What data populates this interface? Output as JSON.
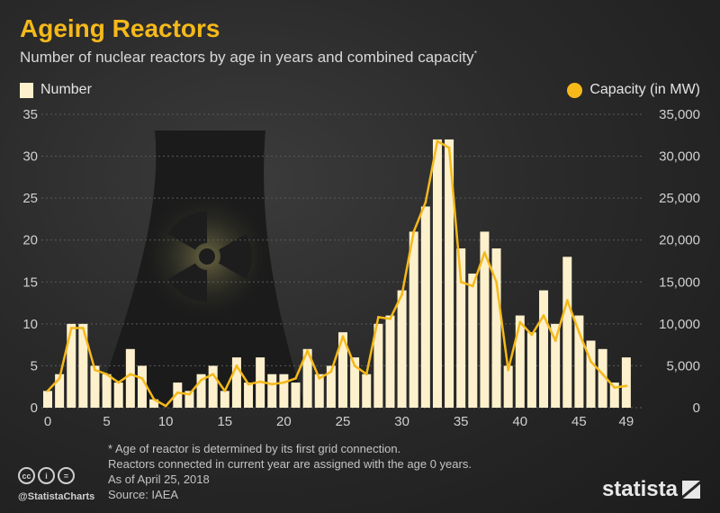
{
  "title": "Ageing Reactors",
  "subtitle": "Number of nuclear reactors by age in years and combined capacity",
  "subtitle_marker": "*",
  "legend": {
    "number": "Number",
    "capacity": "Capacity (in MW)"
  },
  "colors": {
    "bar": "#fdf0cc",
    "line": "#f5b91a",
    "accent": "#f5b91a",
    "text": "#d8d8d8"
  },
  "chart_data": {
    "type": "bar",
    "title": "Ageing Reactors",
    "xlabel": "",
    "ylabel": "Number",
    "y2label": "Capacity (in MW)",
    "ylim": [
      0,
      35
    ],
    "y2lim": [
      0,
      35000
    ],
    "y_ticks": [
      "0",
      "5",
      "10",
      "15",
      "20",
      "25",
      "30",
      "35"
    ],
    "y2_ticks": [
      "0",
      "5,000",
      "10,000",
      "15,000",
      "20,000",
      "25,000",
      "30,000",
      "35,000"
    ],
    "x_ticks": [
      "0",
      "5",
      "10",
      "15",
      "20",
      "25",
      "30",
      "35",
      "40",
      "45",
      "49"
    ],
    "x_tick_positions": [
      0,
      5,
      10,
      15,
      20,
      25,
      30,
      35,
      40,
      45,
      49
    ],
    "categories": [
      0,
      1,
      2,
      3,
      4,
      5,
      6,
      7,
      8,
      9,
      10,
      11,
      12,
      13,
      14,
      15,
      16,
      17,
      18,
      19,
      20,
      21,
      22,
      23,
      24,
      25,
      26,
      27,
      28,
      29,
      30,
      31,
      32,
      33,
      34,
      35,
      36,
      37,
      38,
      39,
      40,
      41,
      42,
      43,
      44,
      45,
      46,
      47,
      48,
      49
    ],
    "series": [
      {
        "name": "Number",
        "type": "bar",
        "values": [
          2,
          4,
          10,
          10,
          5,
          4,
          3,
          7,
          5,
          1,
          0,
          3,
          2,
          4,
          5,
          2,
          6,
          3,
          6,
          4,
          4,
          3,
          7,
          4,
          5,
          9,
          6,
          4,
          10,
          11,
          14,
          21,
          24,
          32,
          32,
          19,
          16,
          21,
          19,
          5,
          11,
          9,
          14,
          10,
          18,
          11,
          8,
          7,
          3,
          6
        ]
      },
      {
        "name": "Capacity (in MW)",
        "type": "line",
        "axis": "right",
        "values": [
          2000,
          3500,
          9500,
          9500,
          4500,
          4000,
          3000,
          4000,
          3500,
          1000,
          200,
          1800,
          1600,
          3300,
          4000,
          2000,
          5000,
          2800,
          3100,
          2800,
          3000,
          3500,
          6800,
          3500,
          4300,
          8500,
          5000,
          4000,
          10800,
          10600,
          13500,
          21000,
          24500,
          31800,
          31000,
          15000,
          14500,
          18500,
          15000,
          4500,
          10200,
          8700,
          11000,
          8000,
          12800,
          9000,
          5500,
          4000,
          2400,
          2600
        ]
      }
    ]
  },
  "footnote": [
    "* Age of reactor is determined by its first grid connection.",
    "Reactors connected in current year are assigned with the age 0 years.",
    "As of April 25, 2018"
  ],
  "source": "Source: IAEA",
  "handle": "@StatistaCharts",
  "brand": "statista",
  "cc_icons": [
    "cc",
    "i",
    "="
  ]
}
